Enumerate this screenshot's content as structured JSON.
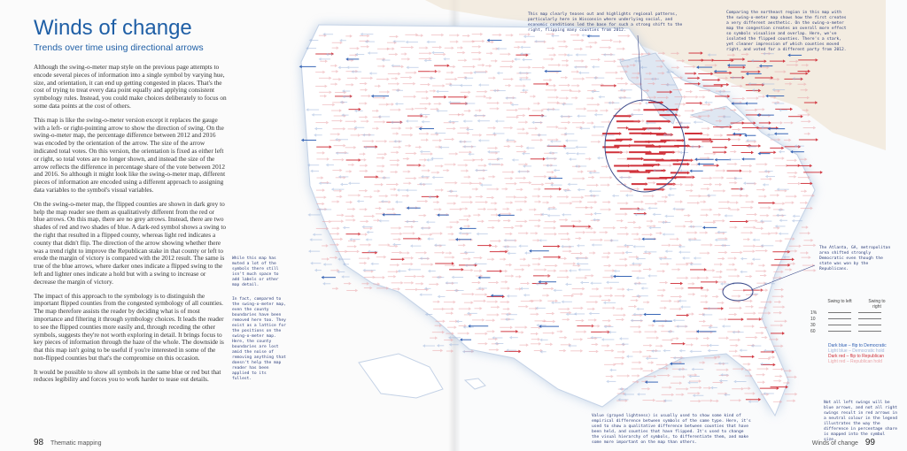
{
  "left_page": {
    "title": "Winds of change",
    "subtitle": "Trends over time using directional arrows",
    "paragraphs": [
      "Although the swing-o-meter map style on the previous page attempts to encode several pieces of information into a single symbol by varying hue, size, and orientation, it can end up getting congested in places. That's the cost of trying to treat every data point equally and applying consistent symbology rules. Instead, you could make choices deliberately to focus on some data points at the cost of others.",
      "This map is like the swing-o-meter version except it replaces the gauge with a left- or right-pointing arrow to show the direction of swing. On the swing-o-meter map, the percentage difference between 2012 and 2016 was encoded by the orientation of the arrow. The size of the arrow indicated total votes. On this version, the orientation is fixed as either left or right, so total votes are no longer shown, and instead the size of the arrow reflects the difference in percentage share of the vote between 2012 and 2016. So although it might look like the swing-o-meter map, different pieces of information are encoded using a different approach to assigning data variables to the symbol's visual variables.",
      "On the swing-o-meter map, the flipped counties are shown in dark grey to help the map reader see them as qualitatively different from the red or blue arrows. On this map, there are no grey arrows. Instead, there are two shades of red and two shades of blue. A dark-red symbol shows a swing to the right that resulted in a flipped county, whereas light red indicates a county that didn't flip. The direction of the arrow showing whether there was a trend right to improve the Republican stake in that county or left to erode the margin of victory is compared with the 2012 result. The same is true of the blue arrows, where darker ones indicate a flipped swing to the left and lighter ones indicate a hold but with a swing to increase or decrease the margin of victory.",
      "The impact of this approach to the symbology is to distinguish the important flipped counties from the congested symbology of all counties. The map therefore assists the reader by deciding what is of most importance and filtering it through symbology choices. It leads the reader to see the flipped counties more easily and, through receding the other symbols, suggests they're not worth exploring in detail. It brings focus to key pieces of information through the haze of the whole. The downside is that this map isn't going to be useful if you're interested in some of the non-flipped counties but that's the compromise on this occasion.",
      "It would be possible to show all symbols in the same blue or red but that reduces legibility and forces you to work harder to tease out details."
    ],
    "folio_number": "98",
    "folio_label": "Thematic mapping"
  },
  "right_page": {
    "folio_number": "99",
    "folio_label": "Winds of change"
  },
  "annotations": {
    "top_center": "This map clearly teases out and highlights regional patterns, particularly here in Wisconsin where underlying social, and economic conditions led the base for such a strong shift to the right, flipping many counties from 2012.",
    "top_right": "Comparing the northeast region in this map with the swing-o-meter map shows how the first creates a very different aesthetic. On the swing-o-meter map the congestion creates an overall more effect so symbols visualise and overlap. Here, we've isolated the flipped counties. There's a stark, yet cleaner impression of which counties moved right, and voted for a different party from 2012.",
    "left_mid": "While this map has muted a lot of the symbols there still isn't much space to add labels or other map detail.",
    "left_mid2": "In fact, compared to the swing-o-meter map, even the county boundaries have been removed here too. They exist as a lattice for the positions on the swing-o-meter map. Here, the county boundaries are lost amid the noise of removing anything that doesn't help the map reader has been applied to its fullest.",
    "right_mid": "The Atlanta, GA, metropolitan area shifted strongly Democratic even though the state was won by the Republicans.",
    "bottom_center": "Value (grayed lightness) is usually used to show some kind of empirical difference between symbols of the same type. Here, it's used to show a qualitative difference between counties that have been held, and counties that have flipped. It's used to change the visual hierarchy of symbols, to differentiate them, and make some more important on the map than others.",
    "bottom_right": "Not all left swings will be blue arrows, and not all right swings result in red arrows in a neutral colour in the legend illustrates the way the difference in percentage share is mapped into the symbol size."
  },
  "legend": {
    "col_left": "Swing to left",
    "col_right": "Swing to right",
    "rows": [
      "1%",
      "10",
      "30",
      "60"
    ],
    "items": [
      {
        "label": "Dark blue – flip to Democratic",
        "color": "#2f5fb3"
      },
      {
        "label": "Light blue – Democratic hold",
        "color": "#9fb6dc"
      },
      {
        "label": "Dark red – flip to Republican",
        "color": "#d0323b"
      },
      {
        "label": "Light red – Republican hold",
        "color": "#eaa3a7"
      }
    ]
  },
  "colors": {
    "title": "#1f5fa6",
    "flip_red": "#d0323b",
    "hold_red": "#eaa3a7",
    "flip_blue": "#2f5fb3",
    "hold_blue": "#9fb6dc"
  }
}
